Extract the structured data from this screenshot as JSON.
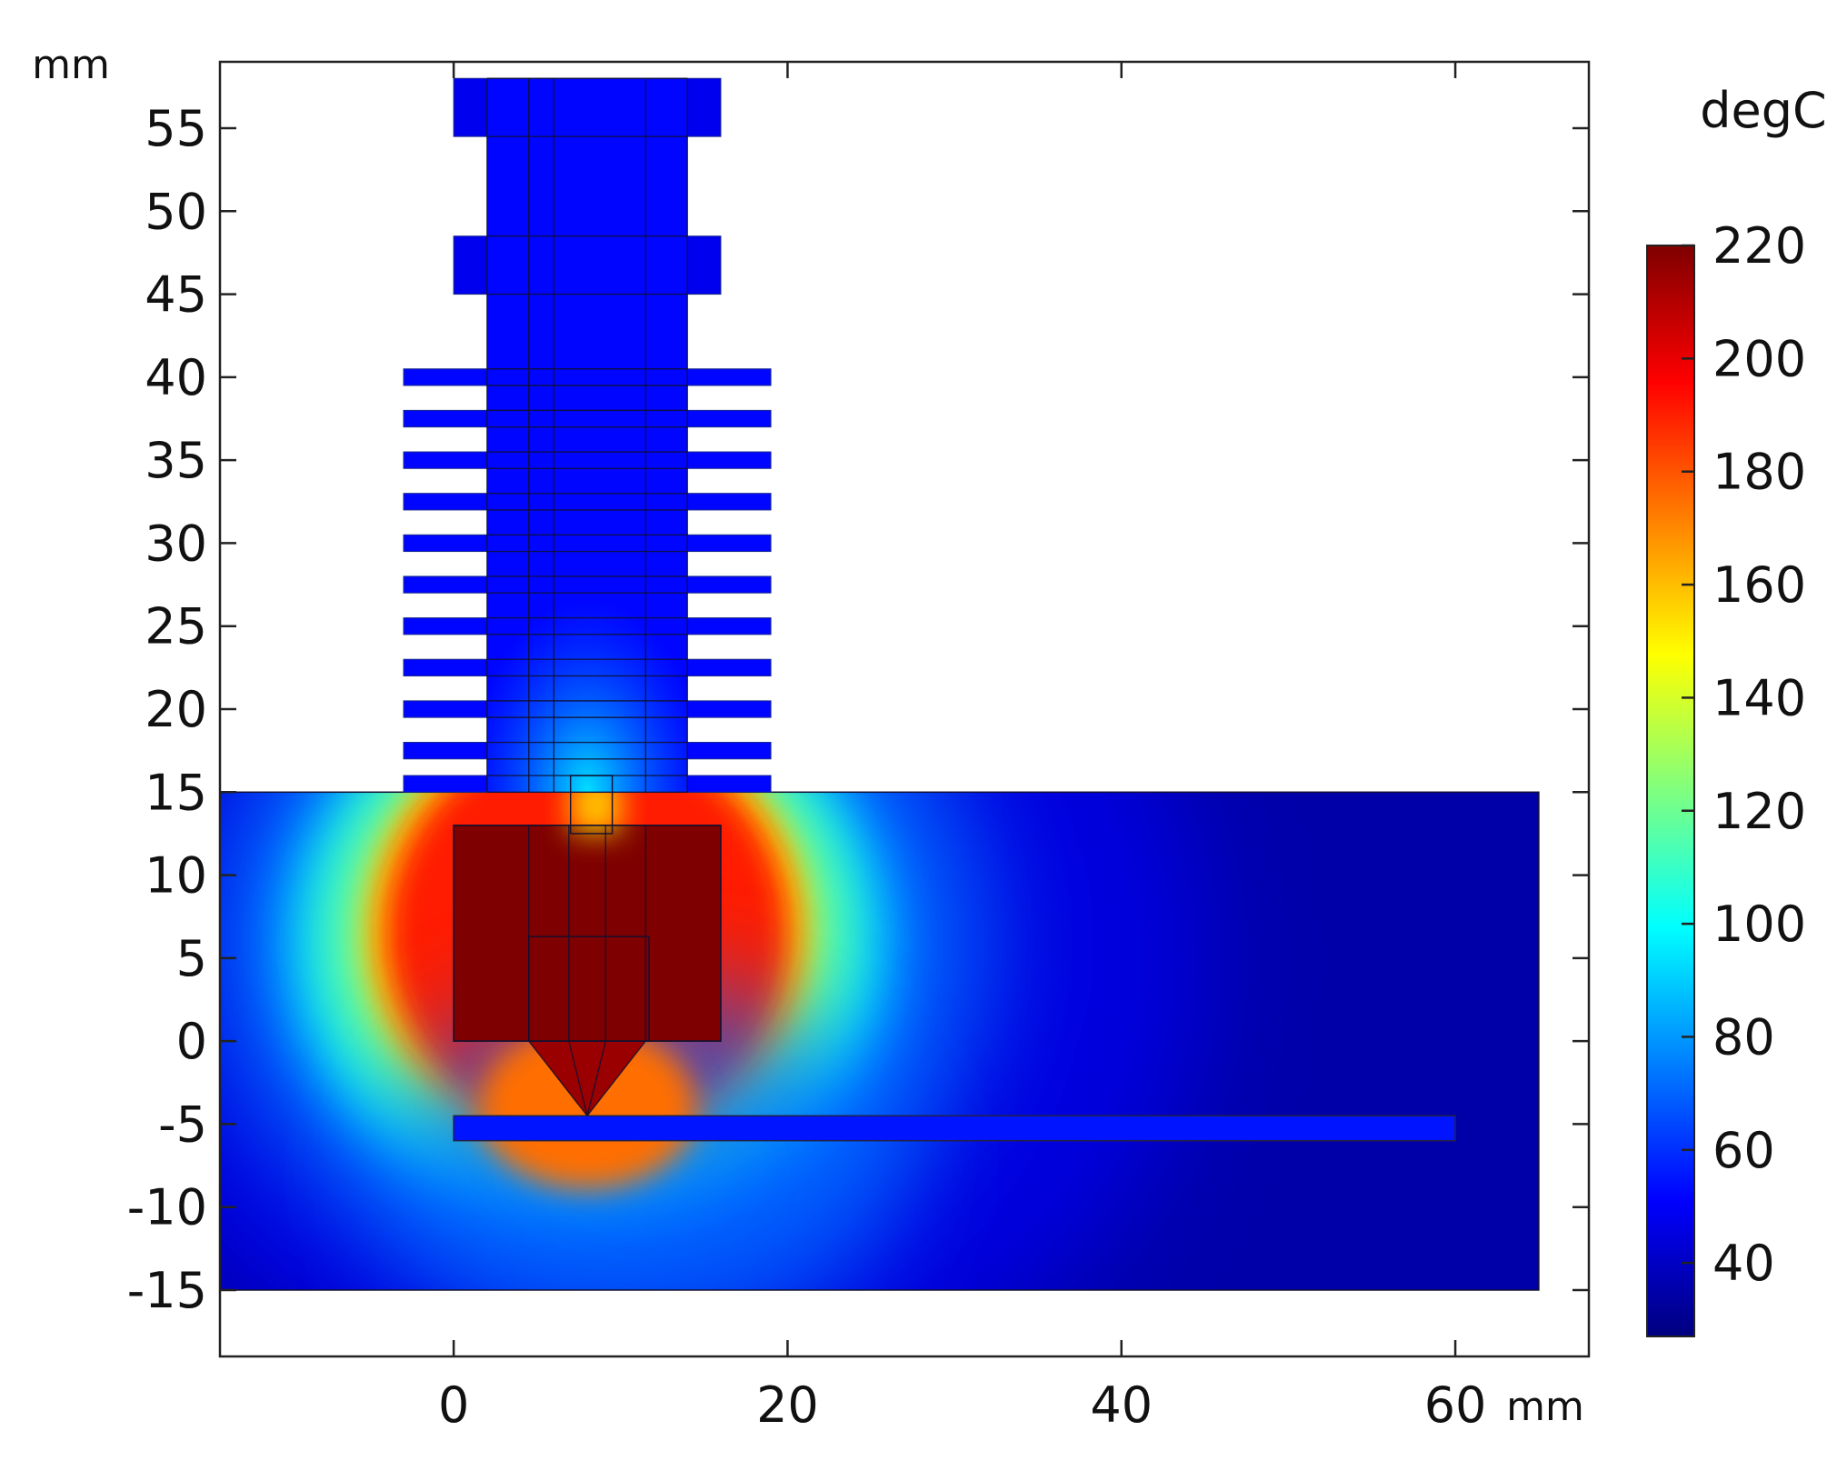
{
  "chart_data": {
    "type": "heatmap",
    "title": "",
    "x_unit": "mm",
    "y_unit": "mm",
    "xlim": [
      -14,
      68
    ],
    "ylim": [
      -19,
      59
    ],
    "x_ticks": [
      {
        "value": 0,
        "label": "0"
      },
      {
        "value": 20,
        "label": "20"
      },
      {
        "value": 40,
        "label": "40"
      },
      {
        "value": 60,
        "label": "60"
      }
    ],
    "y_ticks": [
      {
        "value": 55,
        "label": "55"
      },
      {
        "value": 50,
        "label": "50"
      },
      {
        "value": 45,
        "label": "45"
      },
      {
        "value": 40,
        "label": "40"
      },
      {
        "value": 35,
        "label": "35"
      },
      {
        "value": 30,
        "label": "30"
      },
      {
        "value": 25,
        "label": "25"
      },
      {
        "value": 20,
        "label": "20"
      },
      {
        "value": 15,
        "label": "15"
      },
      {
        "value": 10,
        "label": "10"
      },
      {
        "value": 5,
        "label": "5"
      },
      {
        "value": 0,
        "label": "0"
      },
      {
        "value": -5,
        "label": "-5"
      },
      {
        "value": -10,
        "label": "-10"
      },
      {
        "value": -15,
        "label": "-15"
      }
    ],
    "colorbar": {
      "unit": "degC",
      "range": [
        27,
        220
      ],
      "ticks": [
        {
          "value": 220,
          "label": "220"
        },
        {
          "value": 200,
          "label": "200"
        },
        {
          "value": 180,
          "label": "180"
        },
        {
          "value": 160,
          "label": "160"
        },
        {
          "value": 140,
          "label": "140"
        },
        {
          "value": 120,
          "label": "120"
        },
        {
          "value": 100,
          "label": "100"
        },
        {
          "value": 80,
          "label": "80"
        },
        {
          "value": 60,
          "label": "60"
        },
        {
          "value": 40,
          "label": "40"
        }
      ],
      "colormap": [
        "#00007f",
        "#0000ff",
        "#007fff",
        "#00ffff",
        "#7fff7f",
        "#ffff00",
        "#ff7f00",
        "#ff0000",
        "#7f0000"
      ]
    },
    "regions": {
      "ambient_box": {
        "x": [
          -14,
          65
        ],
        "y": [
          -15,
          15
        ],
        "temperature": 35
      },
      "heater_block": {
        "x": [
          0,
          16
        ],
        "y": [
          0,
          13
        ],
        "temperature": 220
      },
      "nozzle_tip": {
        "x": 8,
        "y": -4.5,
        "temperature": 200
      },
      "build_plate": {
        "x": [
          0,
          60
        ],
        "y": [
          -6,
          -4.5
        ],
        "temperature": 55
      },
      "heat_sink_core": {
        "x": [
          2,
          14
        ],
        "y": [
          15,
          58
        ],
        "temperature": 52
      },
      "heat_sink_caps": [
        {
          "x": [
            0,
            16
          ],
          "y": [
            54.5,
            58
          ],
          "temperature": 48
        },
        {
          "x": [
            0,
            16
          ],
          "y": [
            45,
            48.5
          ],
          "temperature": 48
        }
      ],
      "heat_sink_fins": [
        {
          "y": [
            39.5,
            40.5
          ],
          "x": [
            -3,
            19
          ]
        },
        {
          "y": [
            37,
            38
          ],
          "x": [
            -3,
            19
          ]
        },
        {
          "y": [
            34.5,
            35.5
          ],
          "x": [
            -3,
            19
          ]
        },
        {
          "y": [
            32,
            33
          ],
          "x": [
            -3,
            19
          ]
        },
        {
          "y": [
            29.5,
            30.5
          ],
          "x": [
            -3,
            19
          ]
        },
        {
          "y": [
            27,
            28
          ],
          "x": [
            -3,
            19
          ]
        },
        {
          "y": [
            24.5,
            25.5
          ],
          "x": [
            -3,
            19
          ]
        },
        {
          "y": [
            22,
            23
          ],
          "x": [
            -3,
            19
          ]
        },
        {
          "y": [
            19.5,
            20.5
          ],
          "x": [
            -3,
            19
          ]
        },
        {
          "y": [
            17,
            18
          ],
          "x": [
            -3,
            19
          ]
        },
        {
          "y": [
            15,
            16
          ],
          "x": [
            -3,
            19
          ]
        }
      ],
      "heat_break": {
        "x": [
          7,
          10
        ],
        "y": [
          12.5,
          16
        ],
        "temperature": 150
      }
    }
  }
}
